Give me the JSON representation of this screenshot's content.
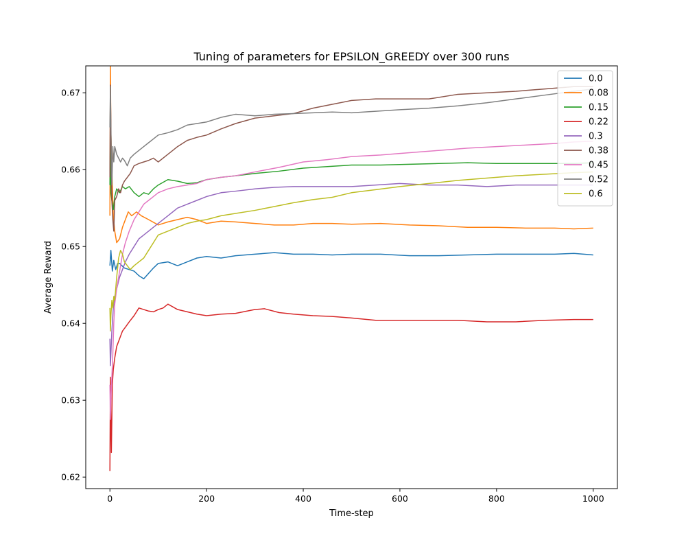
{
  "chart_data": {
    "type": "line",
    "title": "Tuning of parameters for EPSILON_GREEDY over 300 runs",
    "xlabel": "Time-step",
    "ylabel": "Average Reward",
    "xlim": [
      -50,
      1050
    ],
    "ylim": [
      0.6185,
      0.6735
    ],
    "xticks": [
      0,
      200,
      400,
      600,
      800,
      1000
    ],
    "yticks": [
      0.62,
      0.63,
      0.64,
      0.65,
      0.66,
      0.67
    ],
    "xtick_labels": [
      "0",
      "200",
      "400",
      "600",
      "800",
      "1000"
    ],
    "ytick_labels": [
      "0.62",
      "0.63",
      "0.64",
      "0.65",
      "0.66",
      "0.67"
    ],
    "grid": false,
    "legend_position": "top-right",
    "series": [
      {
        "name": "0.0",
        "color": "#1f77b4",
        "x": [
          0,
          2,
          5,
          8,
          12,
          16,
          20,
          25,
          30,
          40,
          50,
          60,
          70,
          80,
          90,
          100,
          120,
          140,
          160,
          180,
          200,
          230,
          260,
          300,
          340,
          380,
          420,
          460,
          500,
          560,
          620,
          680,
          740,
          800,
          860,
          920,
          960,
          1000
        ],
        "y": [
          0.6475,
          0.6495,
          0.6468,
          0.6482,
          0.647,
          0.6478,
          0.6478,
          0.6475,
          0.6472,
          0.647,
          0.6468,
          0.6462,
          0.6458,
          0.6465,
          0.6472,
          0.6478,
          0.648,
          0.6475,
          0.648,
          0.6485,
          0.6487,
          0.6485,
          0.6488,
          0.649,
          0.6492,
          0.649,
          0.649,
          0.6489,
          0.649,
          0.649,
          0.6488,
          0.6488,
          0.6489,
          0.649,
          0.649,
          0.649,
          0.6491,
          0.6489
        ]
      },
      {
        "name": "0.08",
        "color": "#ff7f0e",
        "x": [
          0,
          1,
          2,
          4,
          7,
          10,
          14,
          20,
          26,
          32,
          38,
          45,
          55,
          65,
          80,
          100,
          120,
          140,
          160,
          180,
          200,
          230,
          260,
          300,
          340,
          380,
          420,
          460,
          500,
          560,
          620,
          680,
          740,
          800,
          860,
          920,
          960,
          1000
        ],
        "y": [
          0.654,
          0.6738,
          0.665,
          0.66,
          0.654,
          0.652,
          0.6505,
          0.651,
          0.6525,
          0.6535,
          0.6545,
          0.654,
          0.6545,
          0.654,
          0.6535,
          0.6528,
          0.6532,
          0.6535,
          0.6538,
          0.6535,
          0.653,
          0.6533,
          0.6532,
          0.653,
          0.6528,
          0.6528,
          0.653,
          0.653,
          0.6529,
          0.653,
          0.6528,
          0.6527,
          0.6525,
          0.6525,
          0.6524,
          0.6524,
          0.6523,
          0.6524
        ]
      },
      {
        "name": "0.15",
        "color": "#2ca02c",
        "x": [
          0,
          1,
          2,
          4,
          7,
          10,
          14,
          20,
          26,
          32,
          40,
          50,
          60,
          70,
          80,
          90,
          100,
          120,
          140,
          160,
          180,
          200,
          230,
          260,
          300,
          350,
          400,
          450,
          500,
          560,
          620,
          680,
          740,
          800,
          860,
          920,
          960,
          1000
        ],
        "y": [
          0.658,
          0.664,
          0.657,
          0.656,
          0.6548,
          0.6565,
          0.6575,
          0.657,
          0.6578,
          0.6575,
          0.6578,
          0.657,
          0.6565,
          0.657,
          0.6568,
          0.6575,
          0.658,
          0.6587,
          0.6585,
          0.6582,
          0.6583,
          0.6587,
          0.659,
          0.6592,
          0.6595,
          0.6598,
          0.6602,
          0.6604,
          0.6606,
          0.6606,
          0.6607,
          0.6608,
          0.6609,
          0.6608,
          0.6608,
          0.6608,
          0.6608,
          0.6609
        ]
      },
      {
        "name": "0.22",
        "color": "#d62728",
        "x": [
          0,
          1,
          2,
          3,
          5,
          7,
          10,
          14,
          20,
          26,
          32,
          40,
          50,
          60,
          70,
          80,
          90,
          100,
          110,
          120,
          140,
          160,
          180,
          200,
          230,
          260,
          300,
          320,
          350,
          380,
          420,
          460,
          500,
          550,
          600,
          660,
          720,
          780,
          840,
          900,
          960,
          1000
        ],
        "y": [
          0.6208,
          0.633,
          0.6265,
          0.6232,
          0.632,
          0.634,
          0.6355,
          0.637,
          0.638,
          0.639,
          0.6395,
          0.6402,
          0.641,
          0.642,
          0.6418,
          0.6416,
          0.6415,
          0.6418,
          0.642,
          0.6425,
          0.6418,
          0.6415,
          0.6412,
          0.641,
          0.6412,
          0.6413,
          0.6418,
          0.6419,
          0.6414,
          0.6412,
          0.641,
          0.6409,
          0.6407,
          0.6404,
          0.6404,
          0.6404,
          0.6404,
          0.6402,
          0.6402,
          0.6404,
          0.6405,
          0.6405
        ]
      },
      {
        "name": "0.3",
        "color": "#9467bd",
        "x": [
          0,
          1,
          2,
          4,
          7,
          10,
          14,
          20,
          26,
          32,
          40,
          50,
          60,
          70,
          80,
          90,
          100,
          120,
          140,
          160,
          180,
          200,
          230,
          260,
          300,
          340,
          380,
          420,
          460,
          500,
          550,
          600,
          660,
          720,
          780,
          840,
          900,
          960,
          1000
        ],
        "y": [
          0.638,
          0.6345,
          0.636,
          0.639,
          0.642,
          0.6435,
          0.6445,
          0.646,
          0.647,
          0.648,
          0.649,
          0.65,
          0.651,
          0.6515,
          0.652,
          0.6525,
          0.653,
          0.654,
          0.655,
          0.6555,
          0.656,
          0.6565,
          0.657,
          0.6572,
          0.6575,
          0.6577,
          0.6578,
          0.6578,
          0.6578,
          0.6578,
          0.658,
          0.6582,
          0.658,
          0.658,
          0.6578,
          0.658,
          0.658,
          0.658,
          0.658
        ]
      },
      {
        "name": "0.38",
        "color": "#8c564b",
        "x": [
          0,
          1,
          2,
          4,
          6,
          8,
          10,
          14,
          18,
          22,
          26,
          30,
          36,
          42,
          50,
          60,
          70,
          80,
          90,
          100,
          120,
          140,
          160,
          180,
          200,
          230,
          260,
          300,
          340,
          380,
          420,
          460,
          500,
          550,
          600,
          660,
          720,
          780,
          840,
          900,
          960,
          1000
        ],
        "y": [
          0.659,
          0.671,
          0.666,
          0.656,
          0.6535,
          0.652,
          0.656,
          0.6565,
          0.6575,
          0.657,
          0.658,
          0.6585,
          0.659,
          0.6595,
          0.6605,
          0.6608,
          0.661,
          0.6612,
          0.6615,
          0.661,
          0.662,
          0.663,
          0.6638,
          0.6642,
          0.6645,
          0.6653,
          0.666,
          0.6667,
          0.667,
          0.6673,
          0.668,
          0.6685,
          0.669,
          0.6692,
          0.6692,
          0.6692,
          0.6698,
          0.67,
          0.6702,
          0.6705,
          0.6708,
          0.6708
        ]
      },
      {
        "name": "0.45",
        "color": "#e377c2",
        "x": [
          0,
          1,
          2,
          4,
          6,
          8,
          10,
          14,
          18,
          22,
          26,
          32,
          40,
          50,
          60,
          70,
          80,
          90,
          100,
          120,
          140,
          160,
          180,
          200,
          230,
          260,
          300,
          350,
          400,
          450,
          500,
          560,
          620,
          680,
          740,
          800,
          860,
          920,
          960,
          1000
        ],
        "y": [
          0.632,
          0.6275,
          0.63,
          0.633,
          0.636,
          0.64,
          0.6425,
          0.6445,
          0.646,
          0.6475,
          0.649,
          0.6505,
          0.652,
          0.6535,
          0.6545,
          0.6555,
          0.656,
          0.6565,
          0.657,
          0.6575,
          0.6578,
          0.658,
          0.6582,
          0.6587,
          0.659,
          0.6592,
          0.6597,
          0.6603,
          0.661,
          0.6613,
          0.6617,
          0.6619,
          0.6622,
          0.6625,
          0.6628,
          0.663,
          0.6632,
          0.6634,
          0.6636,
          0.6637
        ]
      },
      {
        "name": "0.52",
        "color": "#7f7f7f",
        "x": [
          0,
          1,
          2,
          4,
          6,
          8,
          10,
          14,
          18,
          22,
          26,
          30,
          36,
          42,
          50,
          60,
          70,
          80,
          90,
          100,
          120,
          140,
          160,
          180,
          200,
          230,
          260,
          300,
          340,
          380,
          420,
          460,
          500,
          550,
          600,
          660,
          720,
          780,
          840,
          900,
          960,
          1000
        ],
        "y": [
          0.6655,
          0.6708,
          0.665,
          0.658,
          0.663,
          0.661,
          0.663,
          0.662,
          0.6615,
          0.661,
          0.6615,
          0.6612,
          0.6605,
          0.6615,
          0.662,
          0.6625,
          0.663,
          0.6635,
          0.664,
          0.6645,
          0.6648,
          0.6652,
          0.6658,
          0.666,
          0.6662,
          0.6668,
          0.6672,
          0.667,
          0.6672,
          0.6673,
          0.6674,
          0.6675,
          0.6674,
          0.6676,
          0.6678,
          0.668,
          0.6683,
          0.6687,
          0.6692,
          0.6697,
          0.6702,
          0.6705
        ]
      },
      {
        "name": "0.6",
        "color": "#bcbd22",
        "x": [
          0,
          1,
          2,
          4,
          6,
          8,
          10,
          14,
          18,
          22,
          26,
          30,
          36,
          42,
          50,
          60,
          70,
          80,
          90,
          100,
          120,
          140,
          160,
          180,
          200,
          230,
          260,
          300,
          340,
          380,
          420,
          460,
          500,
          550,
          600,
          660,
          720,
          780,
          840,
          900,
          960,
          1000
        ],
        "y": [
          0.642,
          0.639,
          0.641,
          0.643,
          0.642,
          0.6435,
          0.643,
          0.646,
          0.6485,
          0.6495,
          0.649,
          0.648,
          0.6475,
          0.647,
          0.6475,
          0.648,
          0.6485,
          0.6495,
          0.6505,
          0.6515,
          0.652,
          0.6525,
          0.653,
          0.6533,
          0.6535,
          0.654,
          0.6543,
          0.6547,
          0.6552,
          0.6557,
          0.6561,
          0.6564,
          0.657,
          0.6574,
          0.6578,
          0.6582,
          0.6586,
          0.6589,
          0.6592,
          0.6594,
          0.6596,
          0.6597
        ]
      }
    ]
  }
}
